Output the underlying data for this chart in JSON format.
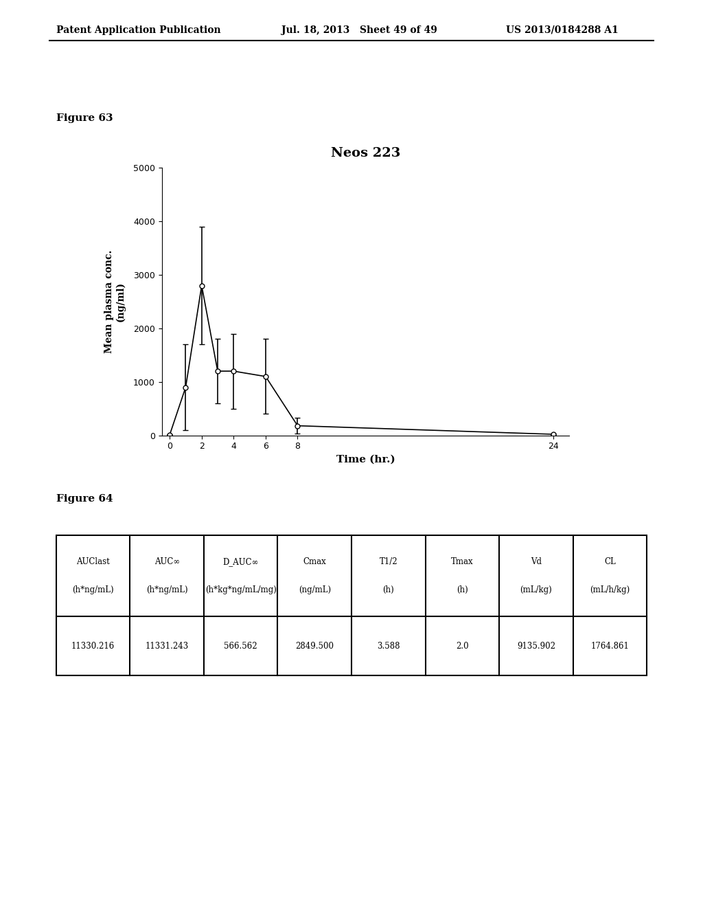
{
  "header_left": "Patent Application Publication",
  "header_middle": "Jul. 18, 2013   Sheet 49 of 49",
  "header_right": "US 2013/0184288 A1",
  "fig63_label": "Figure 63",
  "fig63_title": "Neos 223",
  "fig63_xlabel": "Time (hr.)",
  "fig63_ylabel": "Mean plasma conc.\n(ng/ml)",
  "fig63_x": [
    0,
    1,
    2,
    3,
    4,
    6,
    8,
    24
  ],
  "fig63_y": [
    10,
    900,
    2800,
    1200,
    1200,
    1100,
    180,
    20
  ],
  "fig63_yerr": [
    5,
    800,
    1100,
    600,
    700,
    700,
    150,
    15
  ],
  "fig63_xticks": [
    0,
    2,
    4,
    6,
    8,
    24
  ],
  "fig63_yticks": [
    0,
    1000,
    2000,
    3000,
    4000,
    5000
  ],
  "fig63_ylim": [
    0,
    5000
  ],
  "fig63_xlim": [
    -0.5,
    25
  ],
  "fig64_label": "Figure 64",
  "table_headers_row1": [
    "AUClast",
    "AUC∞",
    "D_AUC∞",
    "Cmax",
    "T1/2",
    "Tmax",
    "Vd",
    "CL"
  ],
  "table_headers_row2": [
    "(h*ng/mL)",
    "(h*ng/mL)",
    "(h*kg*ng/mL/mg)",
    "(ng/mL)",
    "(h)",
    "(h)",
    "(mL/kg)",
    "(mL/h/kg)"
  ],
  "table_data": [
    "11330.216",
    "11331.243",
    "566.562",
    "2849.500",
    "3.588",
    "2.0",
    "9135.902",
    "1764.861"
  ],
  "background_color": "#ffffff",
  "line_color": "#000000",
  "marker_size": 5
}
